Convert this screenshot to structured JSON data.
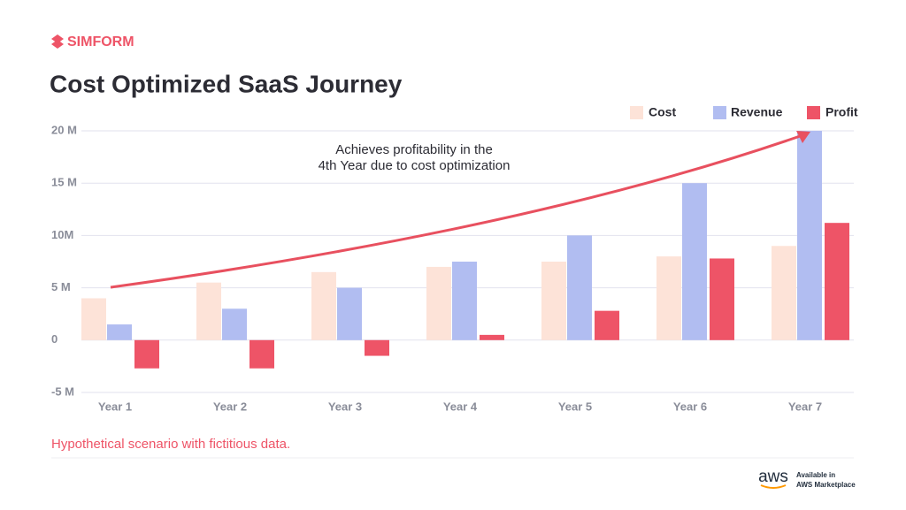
{
  "brand": "SIMFORM",
  "chart_data": {
    "type": "bar",
    "title": "Cost Optimized SaaS Journey",
    "annotation": [
      "Achieves profitability in the",
      "4th Year due to cost optimization"
    ],
    "categories": [
      "Year 1",
      "Year 2",
      "Year 3",
      "Year 4",
      "Year 5",
      "Year 6",
      "Year 7"
    ],
    "series": [
      {
        "name": "Cost",
        "color": "#fde3d8",
        "values": [
          4,
          5.5,
          6.5,
          7,
          7.5,
          8,
          9
        ]
      },
      {
        "name": "Revenue",
        "color": "#b1bdf1",
        "values": [
          1.5,
          3,
          5,
          7.5,
          10,
          15,
          20
        ]
      },
      {
        "name": "Profit",
        "color": "#ee5467",
        "values": [
          -2.7,
          -2.7,
          -1.5,
          0.5,
          2.8,
          7.8,
          11.2
        ]
      }
    ],
    "ylim": [
      -5,
      20
    ],
    "yticks": [
      {
        "value": -5,
        "label": "-5 M"
      },
      0,
      {
        "value": 5,
        "label": "5 M"
      },
      {
        "value": 10,
        "label": "10M"
      },
      {
        "value": 15,
        "label": "15 M"
      },
      {
        "value": 20,
        "label": "20 M"
      }
    ],
    "grid": true,
    "legend": "top-right"
  },
  "footnote": "Hypothetical scenario with fictitious data.",
  "badge": {
    "logo": "aws",
    "line1": "Available in",
    "line2": "AWS Marketplace"
  }
}
